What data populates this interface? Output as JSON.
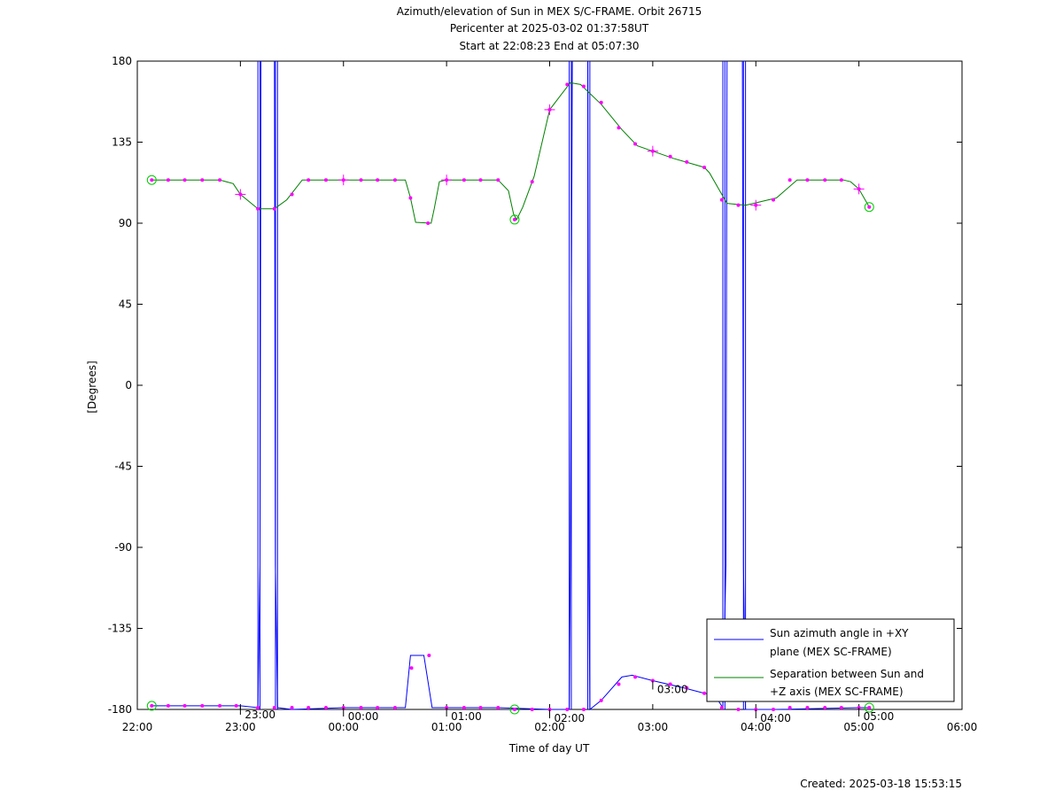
{
  "chart_data": {
    "type": "line",
    "title_lines": [
      "Azimuth/elevation of Sun in MEX S/C-FRAME.  Orbit 26715",
      "Pericenter at 2025-03-02 01:37:58UT",
      "Start at 22:08:23 End at 05:07:30"
    ],
    "xlabel": "Time of day UT",
    "ylabel": "[Degrees]",
    "xlim_hours": [
      22,
      30
    ],
    "ylim": [
      -180,
      180
    ],
    "x_ticks": [
      {
        "value": 22,
        "label": "22:00"
      },
      {
        "value": 23,
        "label": "23:00"
      },
      {
        "value": 24,
        "label": "00:00"
      },
      {
        "value": 25,
        "label": "01:00"
      },
      {
        "value": 26,
        "label": "02:00"
      },
      {
        "value": 27,
        "label": "03:00"
      },
      {
        "value": 28,
        "label": "04:00"
      },
      {
        "value": 29,
        "label": "05:00"
      },
      {
        "value": 30,
        "label": "06:00"
      }
    ],
    "y_ticks": [
      180,
      135,
      90,
      45,
      0,
      -45,
      -90,
      -135,
      -180
    ],
    "legend_position": "bottom-right",
    "series": [
      {
        "name": "Sun azimuth angle in +XY plane (MEX SC-FRAME)",
        "legend_lines": [
          "Sun azimuth angle in +XY",
          "plane (MEX SC-FRAME)"
        ],
        "color": "#0000ff",
        "segments": [
          [
            [
              22.14,
              -178
            ],
            [
              23.0,
              -178
            ],
            [
              23.17,
              -179
            ],
            [
              23.19,
              -100
            ],
            [
              23.2,
              180
            ]
          ],
          [
            [
              23.33,
              180
            ],
            [
              23.34,
              -100
            ],
            [
              23.36,
              -179
            ],
            [
              23.5,
              -180
            ],
            [
              24.0,
              -179
            ],
            [
              24.5,
              -179
            ],
            [
              24.6,
              -179
            ],
            [
              24.65,
              -150
            ],
            [
              24.72,
              -150
            ],
            [
              24.78,
              -150
            ],
            [
              24.86,
              -179
            ],
            [
              25.0,
              -179
            ],
            [
              25.5,
              -179
            ],
            [
              26.0,
              -180
            ],
            [
              26.19,
              -180
            ],
            [
              26.2,
              -100
            ],
            [
              26.22,
              180
            ]
          ],
          [
            [
              26.37,
              180
            ],
            [
              26.38,
              -100
            ],
            [
              26.39,
              -180
            ],
            [
              26.5,
              -175
            ],
            [
              26.7,
              -162
            ],
            [
              26.8,
              -161
            ],
            [
              27.0,
              -164
            ],
            [
              27.3,
              -168
            ],
            [
              27.5,
              -171
            ],
            [
              27.6,
              -172
            ],
            [
              27.68,
              -179
            ],
            [
              27.71,
              -100
            ],
            [
              27.72,
              180
            ]
          ],
          [
            [
              27.87,
              180
            ],
            [
              27.88,
              -100
            ],
            [
              27.9,
              -180
            ],
            [
              28.2,
              -180
            ],
            [
              29.0,
              -179
            ],
            [
              29.1,
              -179
            ]
          ]
        ]
      },
      {
        "name": "Separation between Sun and +Z axis (MEX SC-FRAME)",
        "legend_lines": [
          "Separation between Sun and",
          "+Z axis (MEX SC-FRAME)"
        ],
        "color": "#008000",
        "points": [
          [
            22.14,
            114
          ],
          [
            22.8,
            114
          ],
          [
            22.93,
            112
          ],
          [
            23.0,
            106
          ],
          [
            23.17,
            98
          ],
          [
            23.33,
            98
          ],
          [
            23.45,
            103
          ],
          [
            23.6,
            114
          ],
          [
            24.0,
            114
          ],
          [
            24.6,
            114
          ],
          [
            24.65,
            104
          ],
          [
            24.7,
            90.5
          ],
          [
            24.85,
            90
          ],
          [
            24.88,
            98
          ],
          [
            24.93,
            113
          ],
          [
            25.0,
            114
          ],
          [
            25.5,
            114
          ],
          [
            25.6,
            108
          ],
          [
            25.65,
            95
          ],
          [
            25.68,
            92
          ],
          [
            25.74,
            99
          ],
          [
            25.85,
            116
          ],
          [
            26.0,
            153
          ],
          [
            26.2,
            168
          ],
          [
            26.3,
            167
          ],
          [
            26.5,
            156
          ],
          [
            26.7,
            142
          ],
          [
            26.85,
            133
          ],
          [
            27.0,
            130
          ],
          [
            27.2,
            126
          ],
          [
            27.5,
            121
          ],
          [
            27.55,
            118
          ],
          [
            27.65,
            108
          ],
          [
            27.72,
            101
          ],
          [
            27.9,
            100
          ],
          [
            28.2,
            104
          ],
          [
            28.4,
            114
          ],
          [
            28.85,
            114
          ],
          [
            28.92,
            113
          ],
          [
            29.0,
            109
          ],
          [
            29.1,
            99
          ]
        ],
        "markers": [
          [
            22.14,
            114
          ],
          [
            22.3,
            114
          ],
          [
            22.46,
            114
          ],
          [
            22.63,
            114
          ],
          [
            22.8,
            114
          ],
          [
            23.0,
            106
          ],
          [
            23.17,
            98
          ],
          [
            23.33,
            98
          ],
          [
            23.5,
            106
          ],
          [
            23.66,
            114
          ],
          [
            23.83,
            114
          ],
          [
            24.0,
            114
          ],
          [
            24.17,
            114
          ],
          [
            24.33,
            114
          ],
          [
            24.5,
            114
          ],
          [
            24.65,
            104
          ],
          [
            24.82,
            90
          ],
          [
            25.0,
            114
          ],
          [
            25.17,
            114
          ],
          [
            25.33,
            114
          ],
          [
            25.5,
            114
          ],
          [
            25.66,
            92
          ],
          [
            25.83,
            113
          ],
          [
            26.0,
            153
          ],
          [
            26.17,
            167
          ],
          [
            26.33,
            166
          ],
          [
            26.5,
            157
          ],
          [
            26.67,
            143
          ],
          [
            26.83,
            134
          ],
          [
            27.0,
            130
          ],
          [
            27.17,
            127
          ],
          [
            27.33,
            124
          ],
          [
            27.5,
            121
          ],
          [
            27.67,
            103
          ],
          [
            27.83,
            100
          ],
          [
            28.0,
            100
          ],
          [
            28.17,
            103
          ],
          [
            28.33,
            114
          ],
          [
            28.5,
            114
          ],
          [
            28.67,
            114
          ],
          [
            28.83,
            114
          ],
          [
            29.0,
            109
          ],
          [
            29.1,
            99
          ]
        ]
      }
    ],
    "azimuth_markers": [
      [
        22.14,
        -178
      ],
      [
        22.3,
        -178
      ],
      [
        22.46,
        -178
      ],
      [
        22.63,
        -178
      ],
      [
        22.8,
        -178
      ],
      [
        22.96,
        -178
      ],
      [
        23.17,
        -179
      ],
      [
        23.33,
        -179
      ],
      [
        23.5,
        -179
      ],
      [
        23.66,
        -179
      ],
      [
        23.83,
        -179
      ],
      [
        24.0,
        -179
      ],
      [
        24.17,
        -179
      ],
      [
        24.33,
        -179
      ],
      [
        24.5,
        -179
      ],
      [
        24.66,
        -157
      ],
      [
        24.83,
        -150
      ],
      [
        25.0,
        -179
      ],
      [
        25.17,
        -179
      ],
      [
        25.33,
        -179
      ],
      [
        25.5,
        -179
      ],
      [
        25.66,
        -180
      ],
      [
        25.83,
        -180
      ],
      [
        26.0,
        -180
      ],
      [
        26.17,
        -180
      ],
      [
        26.33,
        -180
      ],
      [
        26.5,
        -175
      ],
      [
        26.67,
        -166
      ],
      [
        26.83,
        -162
      ],
      [
        27.0,
        -164
      ],
      [
        27.17,
        -166
      ],
      [
        27.33,
        -168
      ],
      [
        27.5,
        -171
      ],
      [
        27.67,
        -179
      ],
      [
        27.83,
        -180
      ],
      [
        28.0,
        -180
      ],
      [
        28.17,
        -180
      ],
      [
        28.33,
        -179
      ],
      [
        28.5,
        -179
      ],
      [
        28.67,
        -179
      ],
      [
        28.83,
        -179
      ],
      [
        29.0,
        -179
      ],
      [
        29.1,
        -179
      ]
    ],
    "start_end_circles": [
      [
        22.14,
        114
      ],
      [
        29.1,
        99
      ],
      [
        22.14,
        -178
      ],
      [
        29.1,
        -179
      ]
    ],
    "minimum_circles": [
      [
        25.66,
        92
      ],
      [
        25.66,
        -180
      ]
    ],
    "hour_labels_on_track": [
      {
        "x": 23.0,
        "y": -178,
        "label": "23:00"
      },
      {
        "x": 24.0,
        "y": -179,
        "label": "00:00"
      },
      {
        "x": 25.0,
        "y": -179,
        "label": "01:00"
      },
      {
        "x": 26.0,
        "y": -180,
        "label": "02:00"
      },
      {
        "x": 27.0,
        "y": -164,
        "label": "03:00"
      },
      {
        "x": 28.0,
        "y": -180,
        "label": "04:00"
      },
      {
        "x": 29.0,
        "y": -179,
        "label": "05:00"
      }
    ]
  },
  "footer": {
    "created": "Created: 2025-03-18 15:53:15"
  }
}
